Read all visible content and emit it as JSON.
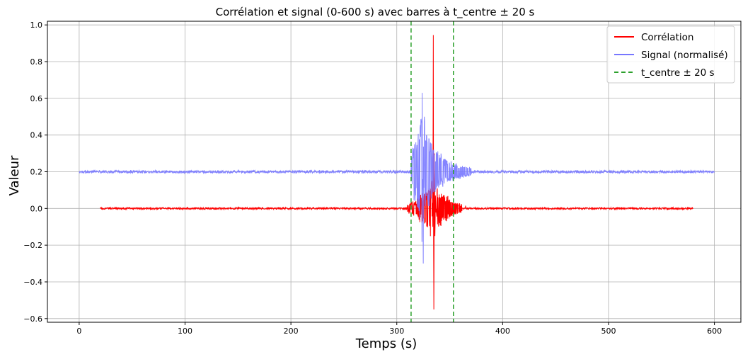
{
  "chart_data": {
    "type": "line",
    "title": "Corrélation et signal (0-600 s) avec barres à t_centre ± 20 s",
    "xlabel": "Temps (s)",
    "ylabel": "Valeur",
    "xlim": [
      -30,
      625
    ],
    "ylim": [
      -0.62,
      1.02
    ],
    "xticks": [
      0,
      100,
      200,
      300,
      400,
      500,
      600
    ],
    "xtick_labels": [
      "0",
      "100",
      "200",
      "300",
      "400",
      "500",
      "600"
    ],
    "yticks": [
      -0.6,
      -0.4,
      -0.2,
      0.0,
      0.2,
      0.4,
      0.6,
      0.8,
      1.0
    ],
    "ytick_labels": [
      "−0.6",
      "−0.4",
      "−0.2",
      "0.0",
      "0.2",
      "0.4",
      "0.6",
      "0.8",
      "1.0"
    ],
    "grid": true,
    "legend_position": "top-right",
    "series": [
      {
        "name": "Corrélation",
        "color": "#ff0000",
        "style": "solid",
        "x": [
          20,
          100,
          200,
          300,
          310,
          318,
          322,
          326,
          330,
          333,
          334,
          334.5,
          335,
          335.5,
          336,
          338,
          342,
          348,
          355,
          365,
          380,
          400,
          500,
          580
        ],
        "y": [
          0.0,
          0.0,
          0.0,
          0.005,
          0.02,
          0.04,
          0.07,
          0.08,
          0.1,
          0.15,
          -0.1,
          0.945,
          -0.55,
          0.3,
          -0.15,
          0.1,
          0.08,
          0.06,
          0.03,
          0.015,
          0.005,
          0.0,
          0.0,
          0.0
        ],
        "noise_amplitude": 0.004
      },
      {
        "name": "Signal (normalisé)",
        "color": "#7777ff",
        "style": "solid",
        "x": [
          0,
          100,
          200,
          300,
          313,
          315,
          318,
          322,
          324,
          325,
          326,
          328,
          332,
          338,
          345,
          355,
          370,
          400,
          500,
          600
        ],
        "y": [
          0.2,
          0.2,
          0.2,
          0.2,
          0.2,
          0.33,
          0.36,
          0.44,
          0.63,
          -0.3,
          0.5,
          0.4,
          0.35,
          0.3,
          0.27,
          0.24,
          0.22,
          0.2,
          0.2,
          0.2
        ],
        "noise_amplitude": 0.006
      },
      {
        "name": "t_centre ± 20 s",
        "color": "#2ca02c",
        "style": "dashed",
        "vlines": [
          313.5,
          353.5
        ]
      }
    ]
  }
}
